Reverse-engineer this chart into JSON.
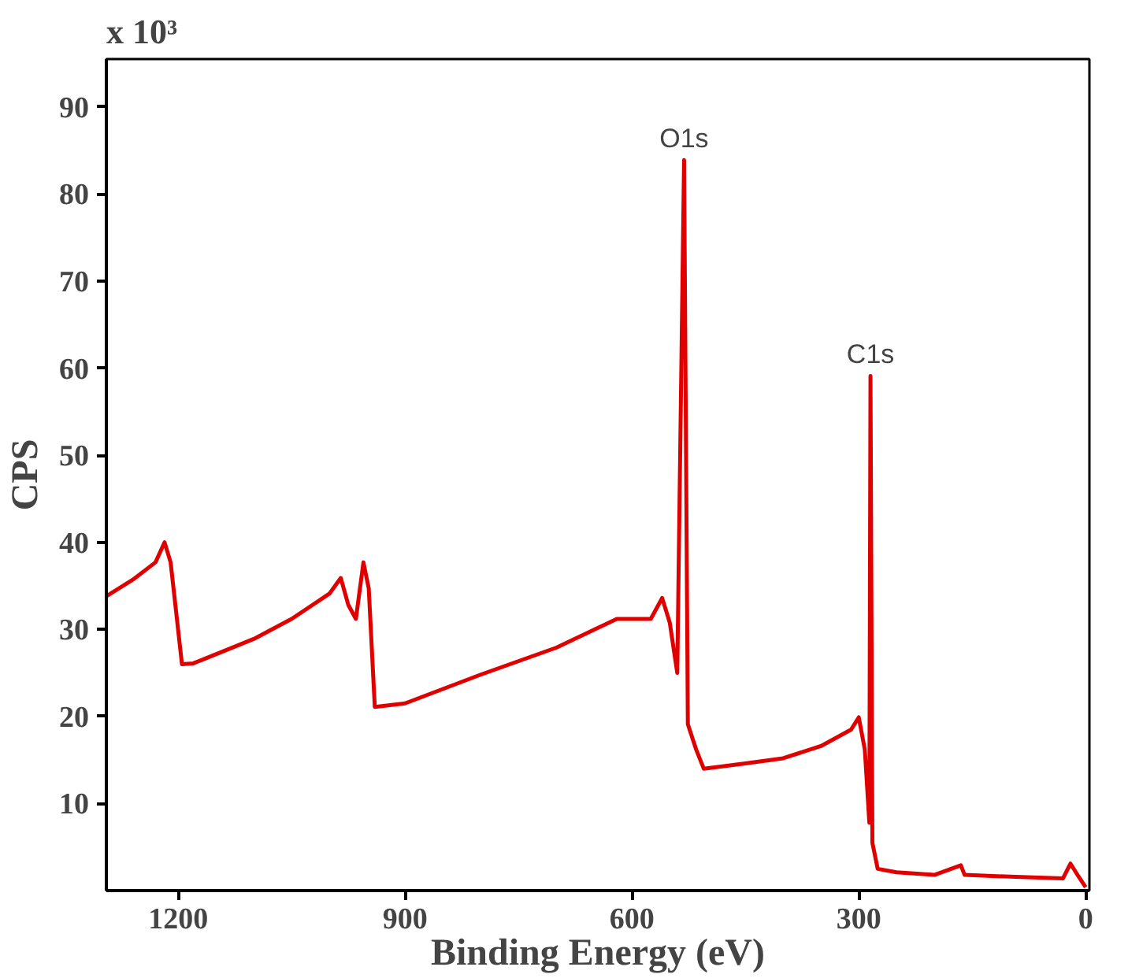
{
  "chart_data": {
    "type": "line",
    "xlabel": "Binding Energy (eV)",
    "ylabel": "CPS",
    "xlim": [
      1295,
      -5
    ],
    "ylim": [
      0,
      95.5
    ],
    "xticks": [
      1200,
      900,
      600,
      300,
      0
    ],
    "yticks": [
      10,
      20,
      30,
      40,
      50,
      60,
      70,
      80,
      90
    ],
    "grid": false,
    "marker": "none",
    "line_style": "solid",
    "annotations": [
      "x 10³",
      {
        "text": "O1s",
        "x": 531,
        "y": 83.9
      },
      {
        "text": "C1s",
        "x": 284.5,
        "y": 59.1
      }
    ],
    "series": [
      {
        "color": "#e00000",
        "x": [
          1295,
          1260,
          1230,
          1218,
          1210,
          1195,
          1180,
          1100,
          1050,
          1000,
          985,
          975,
          965,
          955,
          948,
          940,
          900,
          800,
          700,
          620,
          575,
          560,
          550,
          540,
          531,
          526,
          515,
          505,
          450,
          400,
          350,
          310,
          300,
          292,
          286,
          284.5,
          282,
          275,
          250,
          200,
          165,
          160,
          100,
          30,
          20,
          10,
          0
        ],
        "values": [
          33.8,
          35.7,
          37.7,
          40.0,
          37.7,
          26.0,
          26.1,
          28.9,
          31.2,
          34.1,
          35.9,
          32.8,
          31.2,
          37.7,
          34.7,
          21.1,
          21.5,
          24.8,
          27.9,
          31.2,
          31.2,
          33.6,
          30.8,
          25.0,
          83.9,
          19.1,
          16.2,
          14.0,
          14.6,
          15.2,
          16.6,
          18.5,
          19.9,
          16.2,
          7.8,
          59.1,
          5.5,
          2.5,
          2.1,
          1.8,
          2.9,
          1.8,
          1.6,
          1.4,
          3.1,
          1.7,
          0.4
        ]
      }
    ]
  }
}
